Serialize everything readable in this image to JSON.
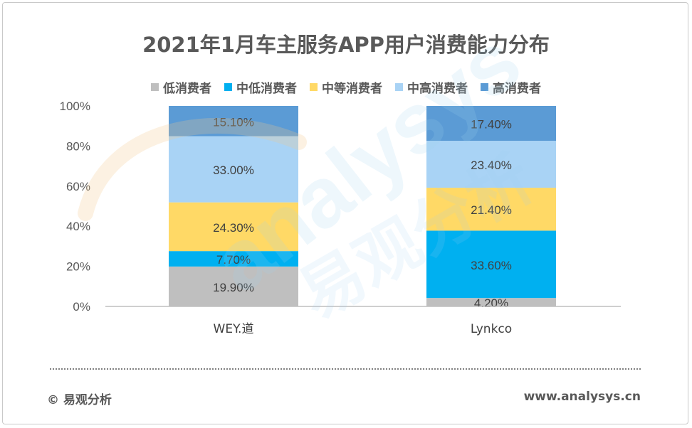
{
  "chart_data": {
    "type": "bar",
    "stacked": true,
    "title": "2021年1月车主服务APP用户消费能力分布",
    "categories": [
      "WEY.道",
      "Lynkco"
    ],
    "series": [
      {
        "name": "低消费者",
        "color": "#bfbfbf",
        "values": [
          19.9,
          4.2
        ],
        "labels": [
          "19.90%",
          "4.20%"
        ]
      },
      {
        "name": "中低消费者",
        "color": "#00b0f0",
        "values": [
          7.7,
          33.6
        ],
        "labels": [
          "7.70%",
          "33.60%"
        ]
      },
      {
        "name": "中等消费者",
        "color": "#ffd966",
        "values": [
          24.3,
          21.4
        ],
        "labels": [
          "24.30%",
          "21.40%"
        ]
      },
      {
        "name": "中高消费者",
        "color": "#a9d3f5",
        "values": [
          33.0,
          23.4
        ],
        "labels": [
          "33.00%",
          "23.40%"
        ]
      },
      {
        "name": "高消费者",
        "color": "#5b9bd5",
        "values": [
          15.1,
          17.4
        ],
        "labels": [
          "15.10%",
          "17.40%"
        ]
      }
    ],
    "y_ticks": [
      "0%",
      "20%",
      "40%",
      "60%",
      "80%",
      "100%"
    ],
    "ylim": [
      0,
      100
    ],
    "legend_position": "top",
    "grid": false
  },
  "footer": {
    "source": "© 易观分析",
    "url": "www.analysys.cn"
  },
  "watermark": {
    "text_en": "analysys",
    "text_cn": "易观分析"
  }
}
